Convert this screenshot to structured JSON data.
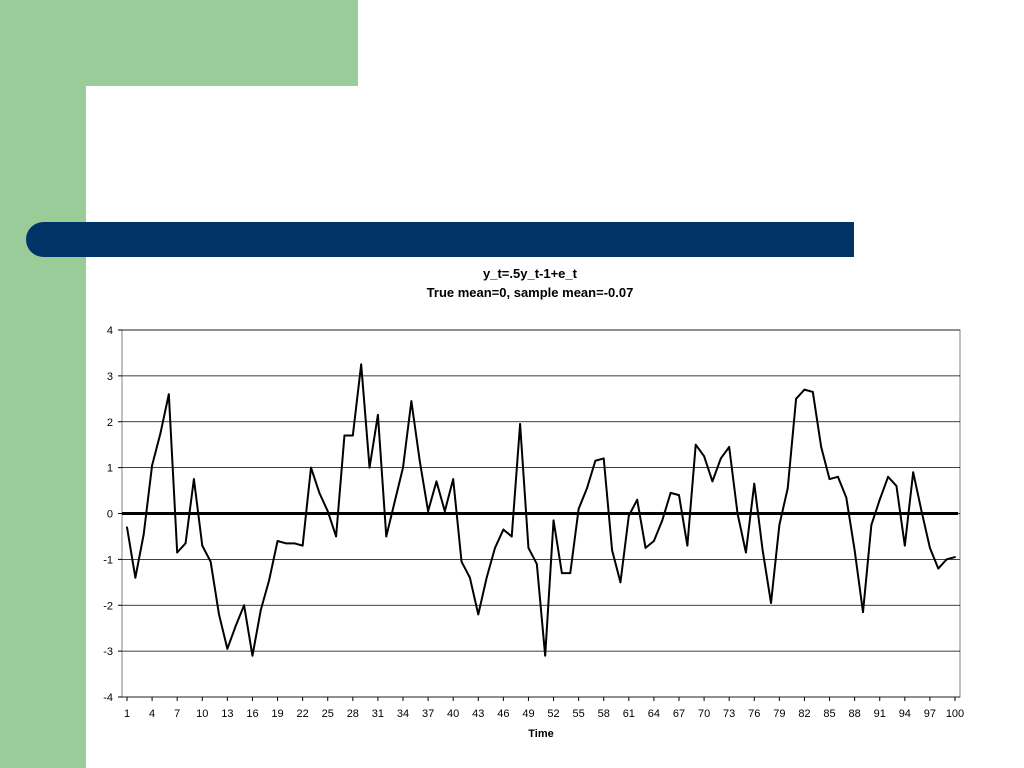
{
  "colors": {
    "green": "#99cc99",
    "blue": "#003366",
    "line": "#000000"
  },
  "chart_data": {
    "type": "line",
    "title": "y_t=.5y_t-1+e_t",
    "subtitle": "True mean=0, sample mean=-0.07",
    "xlabel": "Time",
    "ylabel": "",
    "ylim": [
      -4,
      4
    ],
    "yticks": [
      -4,
      -3,
      -2,
      -1,
      0,
      1,
      2,
      3,
      4
    ],
    "xtick_labels": [
      "1",
      "4",
      "7",
      "10",
      "13",
      "16",
      "19",
      "22",
      "25",
      "28",
      "31",
      "34",
      "37",
      "40",
      "43",
      "46",
      "49",
      "52",
      "55",
      "58",
      "61",
      "64",
      "67",
      "70",
      "73",
      "76",
      "79",
      "82",
      "85",
      "88",
      "91",
      "94",
      "97",
      "100"
    ],
    "grid": "horizontal",
    "reference_line": 0,
    "x": [
      1,
      2,
      3,
      4,
      5,
      6,
      7,
      8,
      9,
      10,
      11,
      12,
      13,
      14,
      15,
      16,
      17,
      18,
      19,
      20,
      21,
      22,
      23,
      24,
      25,
      26,
      27,
      28,
      29,
      30,
      31,
      32,
      33,
      34,
      35,
      36,
      37,
      38,
      39,
      40,
      41,
      42,
      43,
      44,
      45,
      46,
      47,
      48,
      49,
      50,
      51,
      52,
      53,
      54,
      55,
      56,
      57,
      58,
      59,
      60,
      61,
      62,
      63,
      64,
      65,
      66,
      67,
      68,
      69,
      70,
      71,
      72,
      73,
      74,
      75,
      76,
      77,
      78,
      79,
      80,
      81,
      82,
      83,
      84,
      85,
      86,
      87,
      88,
      89,
      90,
      91,
      92,
      93,
      94,
      95,
      96,
      97,
      98,
      99,
      100
    ],
    "series": [
      {
        "values": [
          -0.3,
          -1.4,
          -0.45,
          1.05,
          1.75,
          2.6,
          -0.85,
          -0.65,
          0.75,
          -0.7,
          -1.05,
          -2.2,
          -2.95,
          -2.45,
          -2.0,
          -3.1,
          -2.1,
          -1.45,
          -0.6,
          -0.65,
          -0.65,
          -0.7,
          1.0,
          0.45,
          0.05,
          -0.5,
          1.7,
          1.7,
          3.25,
          1.0,
          2.15,
          -0.5,
          0.25,
          1.0,
          2.45,
          1.15,
          0.05,
          0.7,
          0.05,
          0.75,
          -1.05,
          -1.4,
          -2.2,
          -1.4,
          -0.75,
          -0.35,
          -0.5,
          1.95,
          -0.75,
          -1.1,
          -3.1,
          -0.15,
          -1.3,
          -1.3,
          0.1,
          0.55,
          1.15,
          1.2,
          -0.8,
          -1.5,
          -0.05,
          0.3,
          -0.75,
          -0.6,
          -0.15,
          0.45,
          0.4,
          -0.7,
          1.5,
          1.25,
          0.7,
          1.2,
          1.45,
          0.0,
          -0.85,
          0.65,
          -0.8,
          -1.95,
          -0.25,
          0.55,
          2.5,
          2.7,
          2.65,
          1.45,
          0.75,
          0.8,
          0.35,
          -0.8,
          -2.15,
          -0.25,
          0.3,
          0.8,
          0.6,
          -0.7,
          0.9,
          0.05,
          -0.75,
          -1.2,
          -1.0,
          -0.95
        ]
      }
    ]
  }
}
